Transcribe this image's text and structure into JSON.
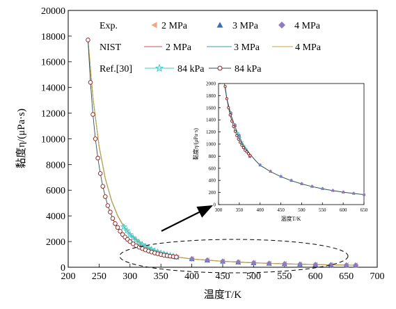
{
  "chart_data": [
    {
      "type": "line",
      "xlabel": "温度T/K",
      "ylabel": "黏度η/(μPa·s)",
      "xlim": [
        200,
        700
      ],
      "ylim": [
        0,
        20000
      ],
      "xticks": [
        200,
        250,
        300,
        350,
        400,
        450,
        500,
        550,
        600,
        650,
        700
      ],
      "yticks": [
        0,
        2000,
        4000,
        6000,
        8000,
        10000,
        12000,
        14000,
        16000,
        18000,
        20000
      ],
      "grid": false,
      "legend_position": "top-right",
      "legend": {
        "row1_label": "Exp.",
        "row2_label": "NIST",
        "row3_label": "Ref.[30]",
        "exp_2": "2 MPa",
        "exp_3": "3 MPa",
        "exp_4": "4 MPa",
        "nist_2": "2 MPa",
        "nist_3": "3 MPa",
        "nist_4": "4 MPa",
        "ref_stars": "84 kPa",
        "ref_circles": "84 kPa"
      },
      "colors": {
        "exp_2MPa": "#f4a582",
        "exp_3MPa": "#3a6fb5",
        "exp_4MPa": "#8e7cc3",
        "nist_2MPa": "#c0504d",
        "nist_3MPa": "#3aa0a0",
        "nist_4MPa": "#c8a040",
        "ref_stars": "#40c8c8",
        "ref_circles": "#8b1a1a",
        "curve_main": "#2f4f4f"
      },
      "series": [
        {
          "name": "Exp. 2 MPa",
          "marker": "triangle-left",
          "x": [
            375,
            400,
            425,
            450,
            475,
            500,
            525,
            550,
            575,
            600,
            625,
            650,
            665
          ],
          "y": [
            790,
            650,
            545,
            462,
            396,
            342,
            298,
            262,
            231,
            206,
            184,
            165,
            155
          ]
        },
        {
          "name": "Exp. 3 MPa",
          "marker": "triangle-up",
          "x": [
            375,
            400,
            425,
            450,
            475,
            500,
            525,
            550,
            575,
            600,
            625,
            650,
            665
          ],
          "y": [
            795,
            655,
            550,
            466,
            400,
            346,
            302,
            265,
            234,
            208,
            186,
            167,
            157
          ]
        },
        {
          "name": "Exp. 4 MPa",
          "marker": "diamond",
          "x": [
            375,
            400,
            425,
            450,
            475,
            500,
            525,
            550,
            575,
            600,
            625,
            650,
            665
          ],
          "y": [
            800,
            660,
            555,
            470,
            404,
            350,
            305,
            268,
            237,
            211,
            189,
            170,
            160
          ]
        },
        {
          "name": "NIST 2 MPa",
          "marker": "none",
          "x": [
            232,
            240,
            250,
            260,
            270,
            280,
            290,
            300,
            320,
            340,
            360,
            380,
            400,
            450,
            500,
            550,
            600,
            650,
            670
          ],
          "y": [
            17700,
            13200,
            9400,
            6900,
            5200,
            4000,
            3150,
            2550,
            1750,
            1270,
            970,
            770,
            640,
            460,
            342,
            262,
            206,
            165,
            153
          ]
        },
        {
          "name": "NIST 3 MPa",
          "marker": "none",
          "x": [
            232,
            240,
            250,
            260,
            270,
            280,
            290,
            300,
            320,
            340,
            360,
            380,
            400,
            450,
            500,
            550,
            600,
            650,
            670
          ],
          "y": [
            17720,
            13220,
            9420,
            6920,
            5220,
            4020,
            3170,
            2570,
            1760,
            1280,
            980,
            775,
            645,
            465,
            346,
            265,
            208,
            167,
            155
          ]
        },
        {
          "name": "NIST 4 MPa",
          "marker": "none",
          "x": [
            232,
            240,
            250,
            260,
            270,
            280,
            290,
            300,
            320,
            340,
            360,
            380,
            400,
            450,
            500,
            550,
            600,
            650,
            670
          ],
          "y": [
            17740,
            13240,
            9440,
            6940,
            5240,
            4040,
            3190,
            2590,
            1770,
            1290,
            990,
            780,
            650,
            470,
            350,
            268,
            211,
            170,
            158
          ]
        },
        {
          "name": "Ref.[30] 84 kPa (stars)",
          "marker": "star",
          "x": [
            290,
            295,
            300,
            305,
            310,
            315,
            320,
            325,
            330,
            335,
            340,
            345,
            350,
            355,
            360,
            365,
            370,
            375
          ],
          "y": [
            3150,
            2850,
            2550,
            2300,
            2100,
            1900,
            1750,
            1620,
            1500,
            1380,
            1270,
            1180,
            1110,
            1040,
            970,
            910,
            860,
            815
          ]
        },
        {
          "name": "Ref.[30] 84 kPa (circles)",
          "marker": "circle",
          "x": [
            232,
            236,
            240,
            244,
            248,
            252,
            256,
            260,
            264,
            268,
            272,
            276,
            280,
            284,
            288,
            292,
            296,
            300,
            305,
            310,
            315,
            320,
            325,
            330,
            335,
            340,
            345,
            350,
            355,
            360,
            365,
            370,
            375
          ],
          "y": [
            17700,
            14400,
            11900,
            10000,
            8500,
            7300,
            6300,
            5500,
            4800,
            4300,
            3800,
            3400,
            3100,
            2800,
            2550,
            2350,
            2170,
            2000,
            1820,
            1680,
            1560,
            1450,
            1350,
            1260,
            1180,
            1110,
            1050,
            990,
            940,
            900,
            860,
            830,
            800
          ]
        }
      ]
    },
    {
      "type": "line",
      "xlabel": "温度T/K",
      "ylabel": "黏度η/(μPa·s)",
      "xlim": [
        300,
        650
      ],
      "ylim": [
        0,
        2000
      ],
      "xticks": [
        300,
        350,
        400,
        450,
        500,
        550,
        600,
        650
      ],
      "yticks": [
        0,
        200,
        400,
        600,
        800,
        1000,
        1200,
        1400,
        1600,
        1800,
        2000
      ],
      "grid": false,
      "series": [
        {
          "name": "Exp. 2 MPa",
          "marker": "triangle-left",
          "x": [
            330,
            340,
            350,
            375,
            400,
            425,
            450,
            475,
            500,
            525,
            550,
            575,
            600,
            625,
            650
          ],
          "y": [
            1500,
            1300,
            1130,
            790,
            650,
            545,
            462,
            396,
            342,
            298,
            262,
            231,
            206,
            184,
            165
          ]
        },
        {
          "name": "Exp. 3 MPa",
          "marker": "triangle-up",
          "x": [
            330,
            340,
            350,
            375,
            400,
            425,
            450,
            475,
            500,
            525,
            550,
            575,
            600,
            625,
            650
          ],
          "y": [
            1510,
            1310,
            1140,
            795,
            655,
            550,
            466,
            400,
            346,
            302,
            265,
            234,
            208,
            186,
            167
          ]
        },
        {
          "name": "Exp. 4 MPa",
          "marker": "diamond",
          "x": [
            330,
            340,
            350,
            375,
            400,
            425,
            450,
            475,
            500,
            525,
            550,
            575,
            600,
            625,
            650
          ],
          "y": [
            1520,
            1320,
            1150,
            800,
            660,
            555,
            470,
            404,
            350,
            305,
            268,
            237,
            211,
            189,
            170
          ]
        },
        {
          "name": "NIST",
          "marker": "none",
          "x": [
            314,
            320,
            330,
            340,
            350,
            360,
            375,
            390,
            400,
            425,
            450,
            475,
            500,
            525,
            550,
            575,
            600,
            625,
            650
          ],
          "y": [
            2000,
            1750,
            1480,
            1280,
            1120,
            990,
            840,
            720,
            650,
            545,
            462,
            396,
            342,
            298,
            262,
            231,
            206,
            184,
            165
          ]
        },
        {
          "name": "Ref.[30] 84 kPa (stars)",
          "marker": "star",
          "x": [
            345,
            350,
            355,
            360,
            365
          ],
          "y": [
            1180,
            1100,
            1030,
            970,
            910
          ]
        },
        {
          "name": "Ref.[30] 84 kPa (circles)",
          "marker": "circle",
          "x": [
            316,
            320,
            324,
            328,
            332,
            336,
            340,
            344,
            348,
            352,
            356,
            360,
            364,
            368,
            372,
            376
          ],
          "y": [
            1950,
            1750,
            1600,
            1480,
            1380,
            1290,
            1210,
            1140,
            1080,
            1030,
            980,
            940,
            900,
            870,
            840,
            810
          ]
        }
      ]
    }
  ]
}
